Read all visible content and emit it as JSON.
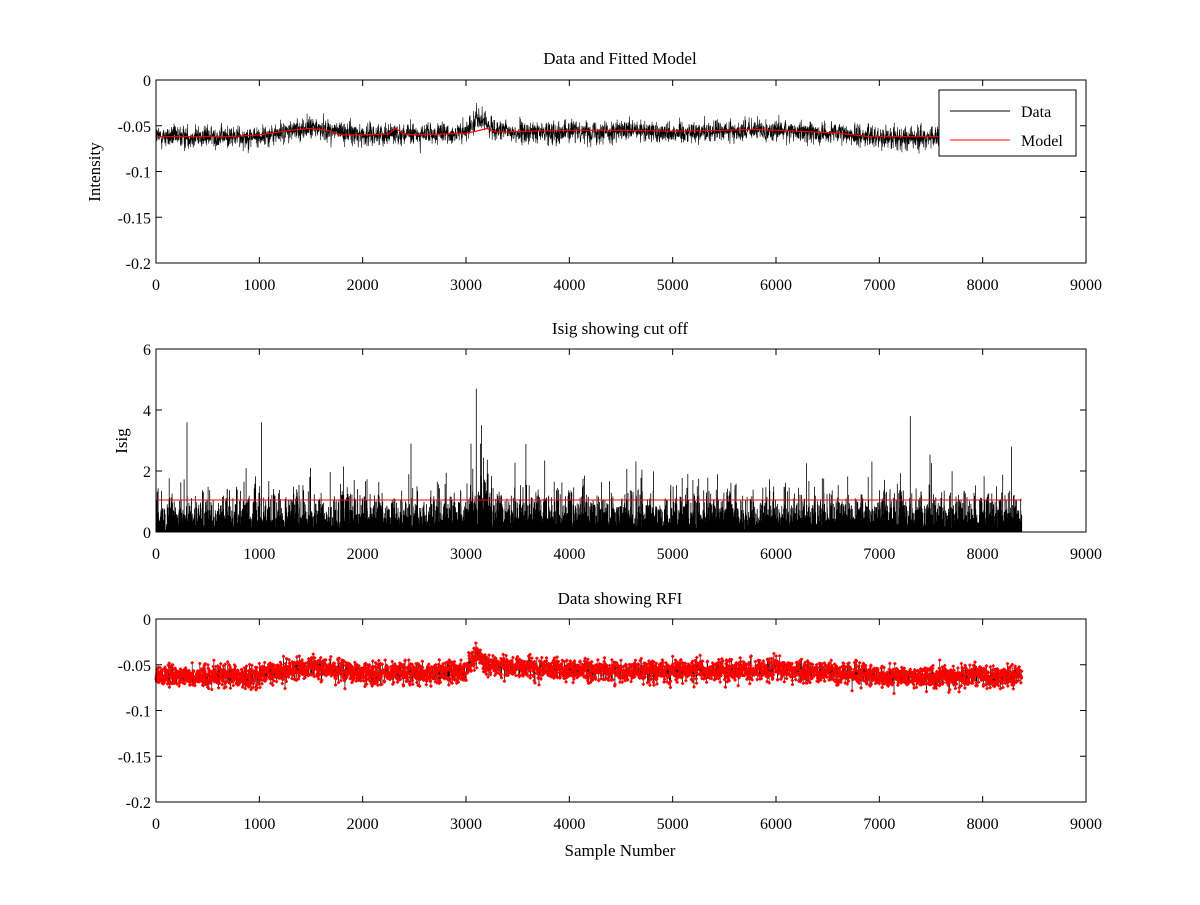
{
  "chart_data": [
    {
      "type": "line",
      "title": "Data and Fitted Model",
      "xlabel": "",
      "ylabel": "Intensity",
      "xlim": [
        0,
        9000
      ],
      "ylim": [
        -0.2,
        0
      ],
      "xticks": [
        "0",
        "1000",
        "2000",
        "3000",
        "4000",
        "5000",
        "6000",
        "7000",
        "8000",
        "9000"
      ],
      "yticks": [
        "0",
        "-0.05",
        "-0.1",
        "-0.15",
        "-0.2"
      ],
      "legend": {
        "position": "top-right",
        "entries": [
          "Data",
          "Model"
        ]
      },
      "grid": false,
      "series": [
        {
          "name": "Data",
          "color": "#000000",
          "n_samples": 8380,
          "x": [
            0,
            500,
            1000,
            1500,
            2000,
            2300,
            2500,
            3000,
            3100,
            3150,
            3300,
            3500,
            4000,
            4500,
            5000,
            5500,
            6000,
            6500,
            7000,
            7300,
            7500,
            8000,
            8380
          ],
          "y": [
            -0.062,
            -0.062,
            -0.062,
            -0.052,
            -0.06,
            -0.058,
            -0.06,
            -0.058,
            -0.04,
            -0.045,
            -0.055,
            -0.058,
            -0.056,
            -0.056,
            -0.057,
            -0.056,
            -0.055,
            -0.058,
            -0.062,
            -0.064,
            -0.063,
            -0.062,
            -0.062
          ],
          "y_range": [
            -0.1,
            -0.008
          ]
        },
        {
          "name": "Model",
          "color": "#ff0000",
          "x": [
            0,
            700,
            1000,
            1300,
            1500,
            1650,
            1800,
            2000,
            2250,
            2320,
            2400,
            2500,
            2800,
            3000,
            3100,
            3200,
            3300,
            3600,
            4000,
            4500,
            5000,
            5500,
            5800,
            6200,
            6600,
            6900,
            7200,
            7800,
            8380
          ],
          "y": [
            -0.062,
            -0.062,
            -0.06,
            -0.055,
            -0.053,
            -0.055,
            -0.06,
            -0.06,
            -0.059,
            -0.053,
            -0.059,
            -0.06,
            -0.059,
            -0.058,
            -0.056,
            -0.053,
            -0.057,
            -0.056,
            -0.055,
            -0.055,
            -0.056,
            -0.055,
            -0.054,
            -0.056,
            -0.058,
            -0.062,
            -0.062,
            -0.062,
            -0.062
          ]
        }
      ]
    },
    {
      "type": "line",
      "title": "Isig showing cut off",
      "xlabel": "",
      "ylabel": "Isig",
      "xlim": [
        0,
        9000
      ],
      "ylim": [
        0,
        6
      ],
      "xticks": [
        "0",
        "1000",
        "2000",
        "3000",
        "4000",
        "5000",
        "6000",
        "7000",
        "8000",
        "9000"
      ],
      "yticks": [
        "6",
        "4",
        "2",
        "0"
      ],
      "grid": false,
      "series": [
        {
          "color": "#000000",
          "n_samples": 8380,
          "typical_range": [
            0,
            2
          ],
          "peaks": [
            [
              0,
              3.6
            ],
            [
              300,
              3.6
            ],
            [
              1020,
              3.6
            ],
            [
              3100,
              4.7
            ],
            [
              3150,
              3.5
            ],
            [
              7300,
              3.8
            ],
            [
              8280,
              2.8
            ]
          ]
        },
        {
          "color": "#ff0000",
          "cutoff": 1.05,
          "x": [
            0,
            8380
          ]
        }
      ]
    },
    {
      "type": "scatter",
      "title": "Data showing RFI",
      "xlabel": "Sample Number",
      "ylabel": "",
      "xlim": [
        0,
        9000
      ],
      "ylim": [
        -0.2,
        0
      ],
      "xticks": [
        "0",
        "1000",
        "2000",
        "3000",
        "4000",
        "5000",
        "6000",
        "7000",
        "8000",
        "9000"
      ],
      "yticks": [
        "0",
        "-0.05",
        "-0.1",
        "-0.15",
        "-0.2"
      ],
      "grid": false,
      "series": [
        {
          "color": "#ff0000",
          "marker": "dot",
          "n_samples": 8380,
          "x": [
            0,
            1000,
            1500,
            2000,
            3000,
            3100,
            3200,
            4000,
            5000,
            6000,
            6500,
            7000,
            7300,
            8000,
            8380
          ],
          "y": [
            -0.062,
            -0.062,
            -0.052,
            -0.06,
            -0.058,
            -0.04,
            -0.05,
            -0.056,
            -0.057,
            -0.055,
            -0.058,
            -0.062,
            -0.064,
            -0.062,
            -0.062
          ],
          "y_range": [
            -0.1,
            -0.01
          ]
        }
      ]
    }
  ]
}
